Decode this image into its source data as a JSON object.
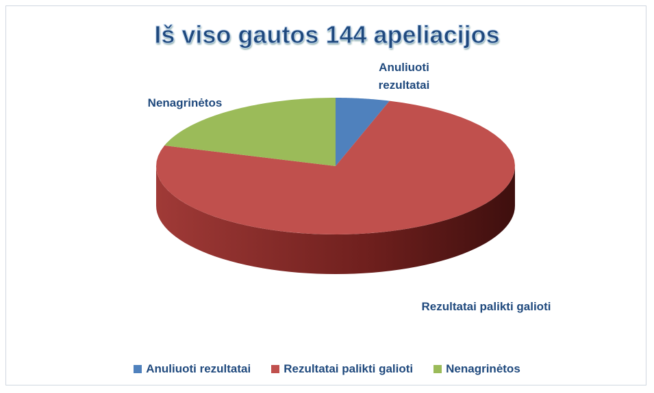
{
  "chart_data": {
    "type": "pie3d",
    "title": "Iš viso gautos 144 apeliacijos",
    "series": [
      {
        "name": "Anuliuoti rezultatai",
        "color": "#4f81bd",
        "value": 7
      },
      {
        "name": "Rezultatai palikti galioti",
        "color": "#c0504d",
        "value": 108
      },
      {
        "name": "Nenagrinėtos",
        "color": "#9bbb59",
        "value": 29
      }
    ],
    "legend": "bottom"
  }
}
